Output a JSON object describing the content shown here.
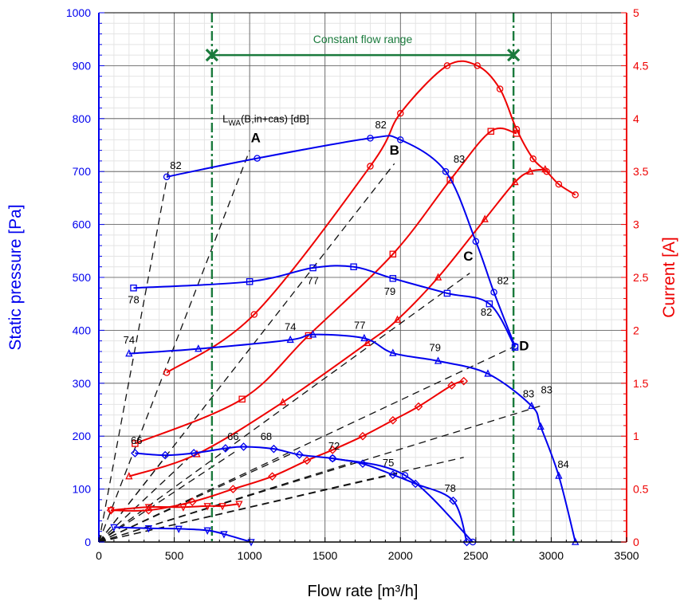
{
  "chart_data": {
    "type": "line",
    "x_axis": {
      "label": "Flow rate [m³/h]",
      "min": 0,
      "max": 3500,
      "ticks": [
        0,
        500,
        1000,
        1500,
        2000,
        2500,
        3000,
        3500
      ]
    },
    "y_axis_left": {
      "label": "Static pressure [Pa]",
      "min": 0,
      "max": 1000,
      "ticks": [
        0,
        100,
        200,
        300,
        400,
        500,
        600,
        700,
        800,
        900,
        1000
      ],
      "color": "#0000ee"
    },
    "y_axis_right": {
      "label": "Current [A]",
      "min": 0,
      "max": 5,
      "ticks": [
        0,
        0.5,
        1,
        1.5,
        2,
        2.5,
        3,
        3.5,
        4,
        4.5,
        5
      ],
      "color": "#ee0000"
    },
    "grid": true,
    "constant_flow_range": {
      "label": "Constant flow range",
      "from": 750,
      "to": 2750,
      "marker_y": 920,
      "color": "#1a7a3c"
    },
    "sound_annotation": "L_WA(B,in+cas) [dB]",
    "pressure_curves": [
      {
        "marker": "circle",
        "points": [
          [
            450,
            690
          ],
          [
            1050,
            725
          ],
          [
            1800,
            763
          ],
          [
            2000,
            760
          ],
          [
            2300,
            700
          ],
          [
            2500,
            568
          ],
          [
            2620,
            472
          ],
          [
            2760,
            370
          ]
        ]
      },
      {
        "marker": "square",
        "points": [
          [
            230,
            480
          ],
          [
            1000,
            492
          ],
          [
            1420,
            518
          ],
          [
            1690,
            520
          ],
          [
            1950,
            498
          ],
          [
            2310,
            470
          ],
          [
            2590,
            450
          ],
          [
            2760,
            368
          ]
        ]
      },
      {
        "marker": "triangle",
        "points": [
          [
            200,
            356
          ],
          [
            660,
            365
          ],
          [
            1270,
            382
          ],
          [
            1420,
            392
          ],
          [
            1760,
            385
          ],
          [
            1950,
            357
          ],
          [
            2250,
            342
          ],
          [
            2580,
            318
          ],
          [
            2870,
            257
          ],
          [
            2930,
            218
          ],
          [
            3050,
            125
          ],
          [
            3160,
            0
          ]
        ]
      },
      {
        "marker": "diamond",
        "points": [
          [
            240,
            168
          ],
          [
            440,
            164
          ],
          [
            630,
            168
          ],
          [
            840,
            177
          ],
          [
            960,
            180
          ],
          [
            1160,
            176
          ],
          [
            1330,
            165
          ],
          [
            1550,
            158
          ],
          [
            1750,
            148
          ],
          [
            1950,
            127
          ],
          [
            2100,
            110
          ],
          [
            2350,
            78
          ],
          [
            2440,
            0
          ]
        ]
      },
      {
        "marker": "circle",
        "points": [
          [
            1550,
            158
          ],
          [
            2030,
            126
          ],
          [
            2480,
            0
          ]
        ]
      },
      {
        "marker": "triangle-down",
        "points": [
          [
            100,
            28
          ],
          [
            330,
            26
          ],
          [
            530,
            25
          ],
          [
            720,
            22
          ],
          [
            830,
            15
          ],
          [
            1010,
            0
          ]
        ]
      }
    ],
    "current_curves": [
      {
        "marker": "circle",
        "points": [
          [
            450,
            1.6
          ],
          [
            1030,
            2.15
          ],
          [
            1800,
            3.55
          ],
          [
            2000,
            4.05
          ],
          [
            2310,
            4.5
          ],
          [
            2510,
            4.5
          ],
          [
            2660,
            4.28
          ],
          [
            2770,
            3.9
          ],
          [
            2880,
            3.62
          ],
          [
            2970,
            3.5
          ],
          [
            3050,
            3.38
          ],
          [
            3160,
            3.28
          ]
        ]
      },
      {
        "marker": "square",
        "points": [
          [
            240,
            0.93
          ],
          [
            950,
            1.35
          ],
          [
            1390,
            1.95
          ],
          [
            1950,
            2.72
          ],
          [
            2330,
            3.42
          ],
          [
            2600,
            3.88
          ],
          [
            2770,
            3.86
          ]
        ]
      },
      {
        "marker": "triangle",
        "points": [
          [
            200,
            0.62
          ],
          [
            650,
            0.83
          ],
          [
            1220,
            1.32
          ],
          [
            1780,
            1.88
          ],
          [
            1980,
            2.1
          ],
          [
            2250,
            2.5
          ],
          [
            2560,
            3.05
          ],
          [
            2760,
            3.4
          ],
          [
            2860,
            3.5
          ],
          [
            2960,
            3.52
          ]
        ]
      },
      {
        "marker": "diamond",
        "points": [
          [
            80,
            0.3
          ],
          [
            330,
            0.3
          ],
          [
            620,
            0.38
          ],
          [
            890,
            0.5
          ],
          [
            1150,
            0.62
          ],
          [
            1380,
            0.77
          ],
          [
            1550,
            0.87
          ],
          [
            1750,
            1.0
          ],
          [
            1950,
            1.15
          ],
          [
            2120,
            1.28
          ],
          [
            2340,
            1.48
          ],
          [
            2420,
            1.52
          ]
        ]
      },
      {
        "marker": "triangle-down",
        "points": [
          [
            80,
            0.3
          ],
          [
            330,
            0.33
          ],
          [
            560,
            0.33
          ],
          [
            720,
            0.34
          ],
          [
            820,
            0.34
          ],
          [
            930,
            0.36
          ]
        ]
      }
    ],
    "system_curves": [
      {
        "label": "A",
        "label_at": [
          1040,
          755
        ],
        "to": [
          1000,
          725
        ]
      },
      {
        "label": "B",
        "label_at": [
          1960,
          732
        ],
        "to": [
          1920,
          720
        ]
      },
      {
        "label": "C",
        "label_at": [
          2450,
          532
        ],
        "to": [
          2450,
          510
        ]
      },
      {
        "label": "D",
        "label_at": [
          2820,
          362
        ],
        "to": [
          2760,
          370
        ]
      }
    ],
    "dashed_lines": [
      [
        [
          0,
          0
        ],
        [
          460,
          700
        ]
      ],
      [
        [
          0,
          0
        ],
        [
          1000,
          740
        ]
      ],
      [
        [
          0,
          0
        ],
        [
          1960,
          715
        ]
      ],
      [
        [
          0,
          0
        ],
        [
          2460,
          508
        ]
      ],
      [
        [
          0,
          0
        ],
        [
          2760,
          370
        ]
      ],
      [
        [
          0,
          0
        ],
        [
          2940,
          258
        ]
      ],
      [
        [
          0,
          0
        ],
        [
          2420,
          160
        ]
      ],
      [
        [
          0,
          0
        ],
        [
          1990,
          130
        ]
      ],
      [
        [
          0,
          0
        ],
        [
          1680,
          150
        ]
      ],
      [
        [
          0,
          0
        ],
        [
          1300,
          170
        ]
      ],
      [
        [
          0,
          0
        ],
        [
          900,
          170
        ]
      ],
      [
        [
          0,
          0
        ],
        [
          600,
          160
        ]
      ],
      [
        [
          0,
          0
        ],
        [
          440,
          160
        ]
      ],
      [
        [
          0,
          0
        ],
        [
          150,
          30
        ]
      ]
    ],
    "db_labels": [
      {
        "text": "82",
        "x": 510,
        "y": 705
      },
      {
        "text": "82",
        "x": 1870,
        "y": 782
      },
      {
        "text": "83",
        "x": 2390,
        "y": 717
      },
      {
        "text": "78",
        "x": 230,
        "y": 451
      },
      {
        "text": "77",
        "x": 1420,
        "y": 487
      },
      {
        "text": "79",
        "x": 1930,
        "y": 467
      },
      {
        "text": "82",
        "x": 2680,
        "y": 487
      },
      {
        "text": "82",
        "x": 2570,
        "y": 428
      },
      {
        "text": "74",
        "x": 200,
        "y": 375
      },
      {
        "text": "74",
        "x": 1270,
        "y": 400
      },
      {
        "text": "77",
        "x": 1730,
        "y": 403
      },
      {
        "text": "79",
        "x": 2230,
        "y": 361
      },
      {
        "text": "83",
        "x": 2850,
        "y": 273
      },
      {
        "text": "83",
        "x": 2970,
        "y": 281
      },
      {
        "text": "84",
        "x": 3080,
        "y": 140
      },
      {
        "text": "66",
        "x": 250,
        "y": 185
      },
      {
        "text": "66",
        "x": 890,
        "y": 193
      },
      {
        "text": "68",
        "x": 1110,
        "y": 193
      },
      {
        "text": "72",
        "x": 1560,
        "y": 175
      },
      {
        "text": "75",
        "x": 1920,
        "y": 143
      },
      {
        "text": "78",
        "x": 2330,
        "y": 95
      }
    ]
  }
}
